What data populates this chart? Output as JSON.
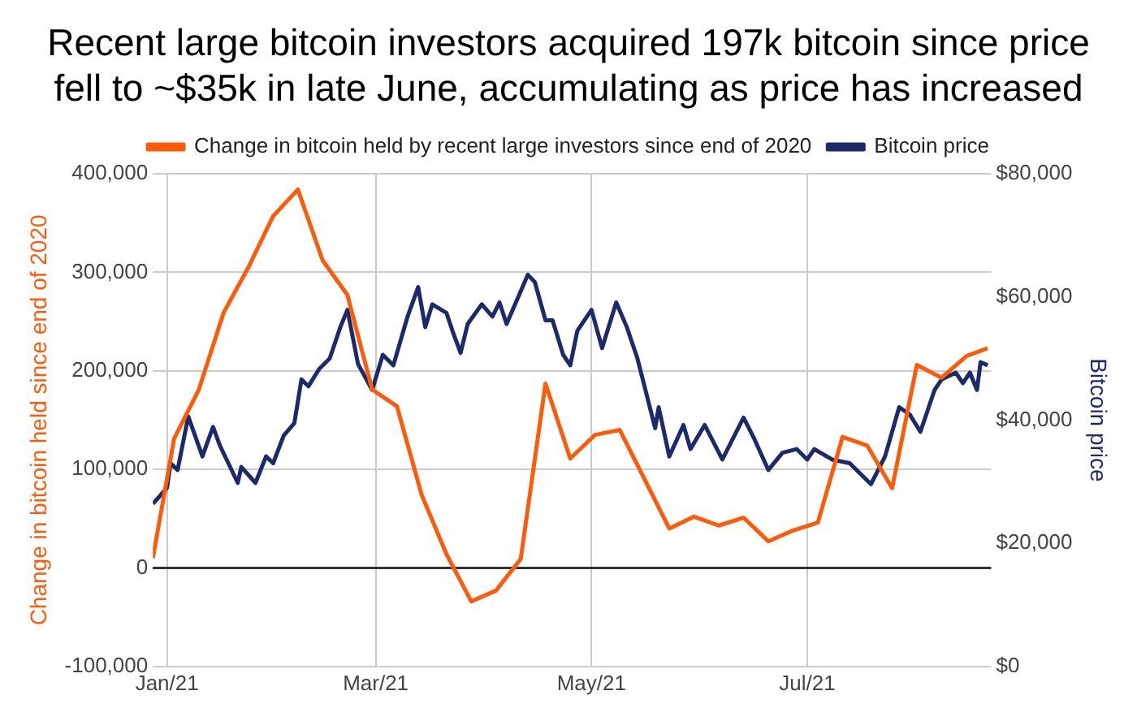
{
  "chart_data": {
    "type": "line",
    "title": "Recent large bitcoin investors acquired 197k bitcoin since price fell to ~$35k in late June, accumulating as price has increased",
    "ylabel": "Change in bitcoin held since end of 2020",
    "y2label": "Bitcoin price",
    "xlim": [
      "2020-12-28",
      "2021-08-22"
    ],
    "xticks": [
      {
        "value": "2021-01-01",
        "label": "Jan/21"
      },
      {
        "value": "2021-03-01",
        "label": "Mar/21"
      },
      {
        "value": "2021-05-01",
        "label": "May/21"
      },
      {
        "value": "2021-07-01",
        "label": "Jul/21"
      }
    ],
    "ylim": [
      -100000,
      400000
    ],
    "yticks": [
      {
        "value": -100000,
        "label": "-100,000"
      },
      {
        "value": 0,
        "label": "0"
      },
      {
        "value": 100000,
        "label": "100,000"
      },
      {
        "value": 200000,
        "label": "200,000"
      },
      {
        "value": 300000,
        "label": "300,000"
      },
      {
        "value": 400000,
        "label": "400,000"
      }
    ],
    "y2lim": [
      0,
      80000
    ],
    "y2ticks": [
      {
        "value": 0,
        "label": "$0"
      },
      {
        "value": 20000,
        "label": "$20,000"
      },
      {
        "value": 40000,
        "label": "$40,000"
      },
      {
        "value": 60000,
        "label": "$60,000"
      },
      {
        "value": 80000,
        "label": "$80,000"
      }
    ],
    "grid": true,
    "legend": "top",
    "marker": "none",
    "line_style": "solid",
    "series": [
      {
        "name": "Change in bitcoin held by recent large investors since end of 2020",
        "color": "#ff5a0a",
        "x": [
          "2020-12-28",
          "2021-01-03",
          "2021-01-10",
          "2021-01-17",
          "2021-01-24",
          "2021-01-31",
          "2021-02-07",
          "2021-02-14",
          "2021-02-21",
          "2021-02-28",
          "2021-03-07",
          "2021-03-14",
          "2021-03-21",
          "2021-03-28",
          "2021-04-04",
          "2021-04-11",
          "2021-04-18",
          "2021-04-25",
          "2021-05-02",
          "2021-05-09",
          "2021-05-16",
          "2021-05-23",
          "2021-05-30",
          "2021-06-06",
          "2021-06-13",
          "2021-06-20",
          "2021-06-27",
          "2021-07-04",
          "2021-07-11",
          "2021-07-18",
          "2021-07-25",
          "2021-08-01",
          "2021-08-08",
          "2021-08-15",
          "2021-08-21"
        ],
        "values": [
          10000,
          131000,
          181000,
          259000,
          305000,
          357000,
          384000,
          312000,
          277000,
          181000,
          164000,
          74000,
          14000,
          -34000,
          -23000,
          9000,
          187000,
          111000,
          135000,
          140000,
          90000,
          40000,
          52000,
          43000,
          51000,
          27000,
          38000,
          46000,
          133000,
          124000,
          81000,
          206000,
          193000,
          215000,
          223000
        ]
      },
      {
        "name": "Bitcoin price",
        "color": "#1c2a6b",
        "axis": "y2",
        "x": [
          "2020-12-28",
          "2021-01-01",
          "2021-01-02",
          "2021-01-04",
          "2021-01-07",
          "2021-01-11",
          "2021-01-14",
          "2021-01-16",
          "2021-01-21",
          "2021-01-22",
          "2021-01-26",
          "2021-01-29",
          "2021-01-31",
          "2021-02-03",
          "2021-02-06",
          "2021-02-08",
          "2021-02-10",
          "2021-02-13",
          "2021-02-16",
          "2021-02-19",
          "2021-02-21",
          "2021-02-24",
          "2021-02-28",
          "2021-03-03",
          "2021-03-06",
          "2021-03-10",
          "2021-03-13",
          "2021-03-15",
          "2021-03-17",
          "2021-03-21",
          "2021-03-23",
          "2021-03-25",
          "2021-03-27",
          "2021-03-31",
          "2021-04-03",
          "2021-04-05",
          "2021-04-07",
          "2021-04-10",
          "2021-04-13",
          "2021-04-15",
          "2021-04-18",
          "2021-04-20",
          "2021-04-23",
          "2021-04-25",
          "2021-04-27",
          "2021-05-01",
          "2021-05-04",
          "2021-05-08",
          "2021-05-11",
          "2021-05-14",
          "2021-05-19",
          "2021-05-20",
          "2021-05-23",
          "2021-05-27",
          "2021-05-29",
          "2021-06-02",
          "2021-06-07",
          "2021-06-13",
          "2021-06-16",
          "2021-06-20",
          "2021-06-24",
          "2021-06-28",
          "2021-07-01",
          "2021-07-03",
          "2021-07-08",
          "2021-07-13",
          "2021-07-19",
          "2021-07-23",
          "2021-07-27",
          "2021-07-30",
          "2021-08-02",
          "2021-08-06",
          "2021-08-08",
          "2021-08-12",
          "2021-08-14",
          "2021-08-16",
          "2021-08-18",
          "2021-08-19",
          "2021-08-21"
        ],
        "values": [
          26400,
          29000,
          33000,
          31900,
          40600,
          34100,
          38900,
          35800,
          29800,
          32400,
          29800,
          34100,
          33000,
          37500,
          39500,
          46600,
          45500,
          48300,
          50000,
          55100,
          57900,
          49100,
          44900,
          50600,
          48900,
          56800,
          61600,
          55100,
          58800,
          57400,
          54000,
          50900,
          55600,
          58800,
          56800,
          59100,
          55600,
          59600,
          63600,
          62400,
          56200,
          56200,
          50600,
          48900,
          54500,
          57900,
          51700,
          59100,
          55100,
          50000,
          38700,
          42100,
          34100,
          39200,
          35300,
          39200,
          33600,
          40400,
          37000,
          31900,
          34700,
          35300,
          33600,
          35300,
          33600,
          33000,
          29600,
          34100,
          42100,
          40900,
          38100,
          44900,
          46600,
          47700,
          46000,
          47700,
          44900,
          49400,
          48900
        ]
      }
    ]
  }
}
